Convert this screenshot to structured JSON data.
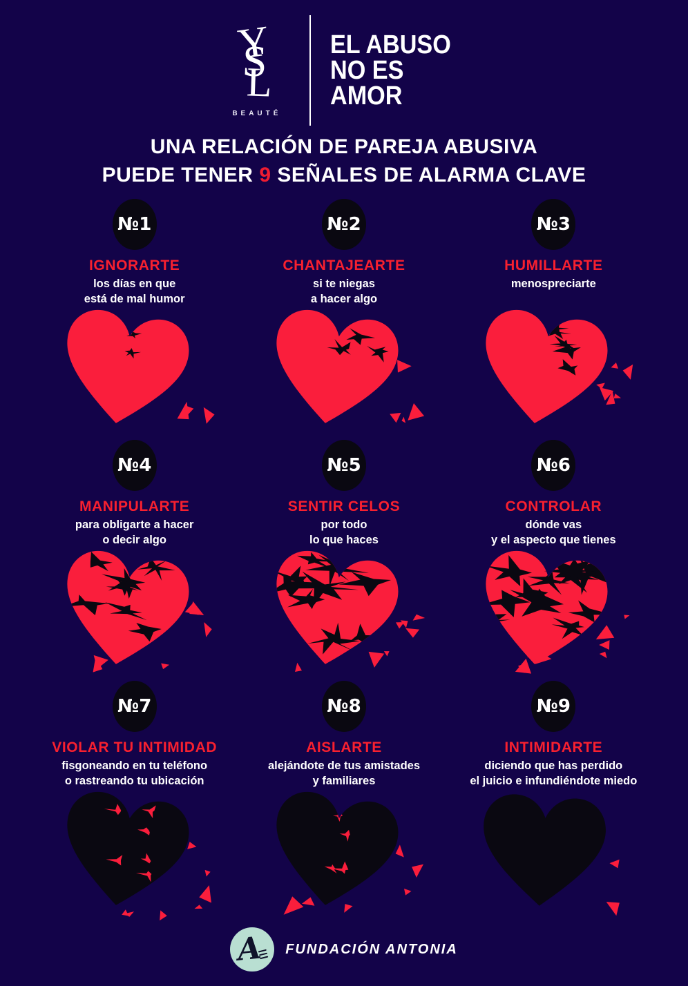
{
  "colors": {
    "background": "#130349",
    "heart_red": "#fa1e3c",
    "title_red": "#ef1c31",
    "item_title_red": "#f8202f",
    "heart_black": "#0a0811",
    "mint": "#b9dfd2",
    "white": "#ffffff"
  },
  "header": {
    "brand": {
      "monogram": [
        "Y",
        "S",
        "L"
      ],
      "subtext": "BEAUTÉ"
    },
    "campaign_lines": [
      "EL ABUSO",
      "NO ES",
      "AMOR"
    ]
  },
  "title": {
    "line1": "UNA RELACIÓN DE PAREJA ABUSIVA",
    "line2_pre": "PUEDE TENER ",
    "line2_number": "9",
    "line2_post": " SEÑALES DE ALARMA CLAVE"
  },
  "items": [
    {
      "number": "№1",
      "title": "IGNORARTE",
      "lines": [
        "los días en que",
        "está de mal humor"
      ],
      "heart": "broken-heart-level-1",
      "heart_level": 1
    },
    {
      "number": "№2",
      "title": "CHANTAJEARTE",
      "lines": [
        "si te niegas",
        "a hacer algo"
      ],
      "heart": "broken-heart-level-2",
      "heart_level": 2
    },
    {
      "number": "№3",
      "title": "HUMILLARTE",
      "lines": [
        "menospreciarte"
      ],
      "heart": "broken-heart-level-3",
      "heart_level": 3
    },
    {
      "number": "№4",
      "title": "MANIPULARTE",
      "lines": [
        "para obligarte a hacer",
        "o decir algo"
      ],
      "heart": "broken-heart-level-4",
      "heart_level": 4
    },
    {
      "number": "№5",
      "title": "SENTIR CELOS",
      "lines": [
        "por todo",
        "lo que haces"
      ],
      "heart": "broken-heart-level-5",
      "heart_level": 5
    },
    {
      "number": "№6",
      "title": "CONTROLAR",
      "lines": [
        "dónde vas",
        "y el aspecto que tienes"
      ],
      "heart": "broken-heart-level-6",
      "heart_level": 6
    },
    {
      "number": "№7",
      "title": "VIOLAR TU INTIMIDAD",
      "lines": [
        "fisgoneando en tu teléfono",
        "o rastreando tu ubicación"
      ],
      "heart": "broken-heart-level-7",
      "heart_level": 7
    },
    {
      "number": "№8",
      "title": "AISLARTE",
      "lines": [
        "alejándote de tus amistades",
        "y familiares"
      ],
      "heart": "broken-heart-level-8",
      "heart_level": 8
    },
    {
      "number": "№9",
      "title": "INTIMIDARTE",
      "lines": [
        "diciendo que has perdido",
        "el juicio e infundiéndote miedo"
      ],
      "heart": "black-heart-level-9",
      "heart_level": 9
    }
  ],
  "footer": {
    "logo_letter": "A",
    "org": "FUNDACIÓN ANTONIA"
  }
}
